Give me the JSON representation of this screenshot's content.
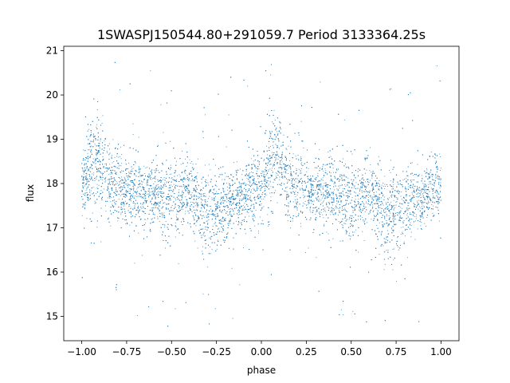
{
  "chart_data": {
    "type": "scatter",
    "title": "1SWASPJ150544.80+291059.7 Period 3133364.25s",
    "xlabel": "phase",
    "ylabel": "flux",
    "xlim": [
      -1.1,
      1.1
    ],
    "ylim": [
      14.45,
      21.1
    ],
    "x_ticks": [
      -1.0,
      -0.75,
      -0.5,
      -0.25,
      0.0,
      0.25,
      0.5,
      0.75,
      1.0
    ],
    "x_tick_labels": [
      "−1.00",
      "−0.75",
      "−0.50",
      "−0.25",
      "0.00",
      "0.25",
      "0.50",
      "0.75",
      "1.00"
    ],
    "y_ticks": [
      15,
      16,
      17,
      18,
      19,
      20,
      21
    ],
    "y_tick_labels": [
      "15",
      "16",
      "17",
      "18",
      "19",
      "20",
      "21"
    ],
    "point_color": "#1f77b4",
    "grid": false,
    "legend": "none",
    "profile": {
      "phase": [
        -1.0,
        -0.95,
        -0.9,
        -0.85,
        -0.8,
        -0.75,
        -0.7,
        -0.65,
        -0.6,
        -0.55,
        -0.5,
        -0.45,
        -0.4,
        -0.35,
        -0.3,
        -0.25,
        -0.2,
        -0.15,
        -0.1,
        -0.05,
        0.0,
        0.05,
        0.1,
        0.15,
        0.2,
        0.25,
        0.3,
        0.35,
        0.4,
        0.45,
        0.5,
        0.55,
        0.6,
        0.65,
        0.7,
        0.75,
        0.8,
        0.85,
        0.9,
        0.95,
        1.0
      ],
      "median_flux": [
        17.9,
        18.4,
        18.5,
        18.0,
        17.9,
        17.9,
        17.8,
        17.8,
        17.8,
        17.7,
        17.6,
        17.7,
        17.8,
        17.6,
        17.2,
        17.4,
        17.5,
        17.6,
        17.7,
        17.9,
        17.9,
        18.5,
        18.5,
        18.0,
        17.9,
        17.9,
        17.8,
        17.8,
        17.8,
        17.7,
        17.6,
        17.7,
        17.8,
        17.6,
        17.2,
        17.4,
        17.5,
        17.6,
        17.7,
        17.9,
        17.9
      ],
      "spread": [
        0.35,
        0.55,
        0.5,
        0.45,
        0.45,
        0.4,
        0.4,
        0.4,
        0.4,
        0.45,
        0.5,
        0.45,
        0.4,
        0.45,
        0.55,
        0.45,
        0.4,
        0.35,
        0.35,
        0.4,
        0.4,
        0.55,
        0.5,
        0.45,
        0.45,
        0.4,
        0.4,
        0.4,
        0.4,
        0.45,
        0.5,
        0.45,
        0.4,
        0.45,
        0.55,
        0.45,
        0.4,
        0.35,
        0.35,
        0.4,
        0.35
      ]
    },
    "n_points": 9000
  }
}
